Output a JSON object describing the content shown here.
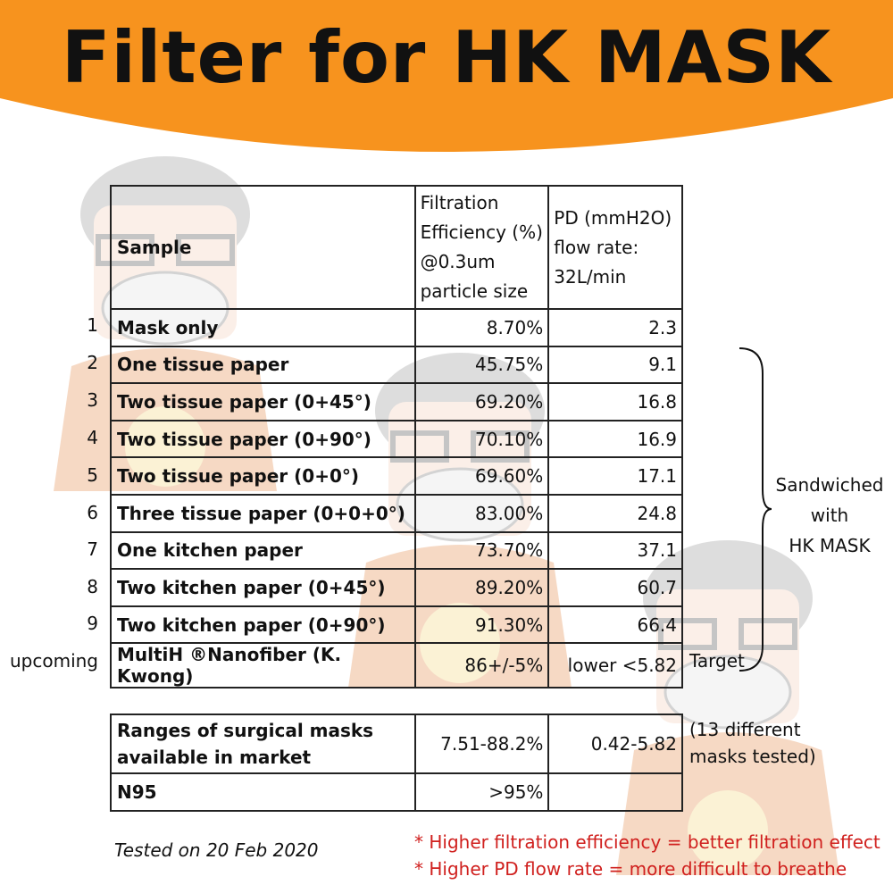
{
  "title": "Filter for HK MASK",
  "colors": {
    "banner": "#f7931e",
    "note_text": "#d0201e",
    "watermark": "#e07a30"
  },
  "table": {
    "headers": {
      "sample": "Sample",
      "efficiency": [
        "Filtration",
        "Efficiency (%)",
        "@0.3um",
        "particle size"
      ],
      "pd": [
        "PD (mmH2O)",
        "flow rate:",
        "32L/min"
      ]
    },
    "rows": [
      {
        "num": "1",
        "sample": "Mask only",
        "efficiency": "8.70%",
        "pd": "2.3"
      },
      {
        "num": "2",
        "sample": "One tissue paper",
        "efficiency": "45.75%",
        "pd": "9.1"
      },
      {
        "num": "3",
        "sample": "Two tissue paper (0+45°)",
        "efficiency": "69.20%",
        "pd": "16.8"
      },
      {
        "num": "4",
        "sample": "Two tissue paper (0+90°)",
        "efficiency": "70.10%",
        "pd": "16.9"
      },
      {
        "num": "5",
        "sample": "Two tissue paper (0+0°)",
        "efficiency": "69.60%",
        "pd": "17.1"
      },
      {
        "num": "6",
        "sample": "Three tissue paper (0+0+0°)",
        "efficiency": "83.00%",
        "pd": "24.8"
      },
      {
        "num": "7",
        "sample": "One kitchen paper",
        "efficiency": "73.70%",
        "pd": "37.1"
      },
      {
        "num": "8",
        "sample": "Two kitchen paper (0+45°)",
        "efficiency": "89.20%",
        "pd": "60.7"
      },
      {
        "num": "9",
        "sample": "Two kitchen paper (0+90°)",
        "efficiency": "91.30%",
        "pd": "66.4"
      },
      {
        "num": "upcoming",
        "sample": "MultiH ®Nanofiber (K. Kwong)",
        "efficiency": "86+/-5%",
        "pd": "lower <5.82"
      }
    ]
  },
  "bracket_note": [
    "Sandwiched",
    "with",
    "HK MASK"
  ],
  "target_label": "Target",
  "market_table": {
    "rows": [
      {
        "sample": [
          "Ranges of surgical masks",
          "available in market"
        ],
        "efficiency": "7.51-88.2%",
        "pd": "0.42-5.82"
      },
      {
        "sample": [
          "N95"
        ],
        "efficiency": ">95%",
        "pd": ""
      }
    ],
    "note": [
      "(13 different",
      "masks tested)"
    ]
  },
  "tested_on": "Tested on 20 Feb 2020",
  "notes": [
    "* Higher filtration efficiency = better filtration effect",
    "* Higher PD flow rate = more difficult to breathe"
  ],
  "watermark_icons": [
    "cartoon-doctor-mascot-icon"
  ]
}
